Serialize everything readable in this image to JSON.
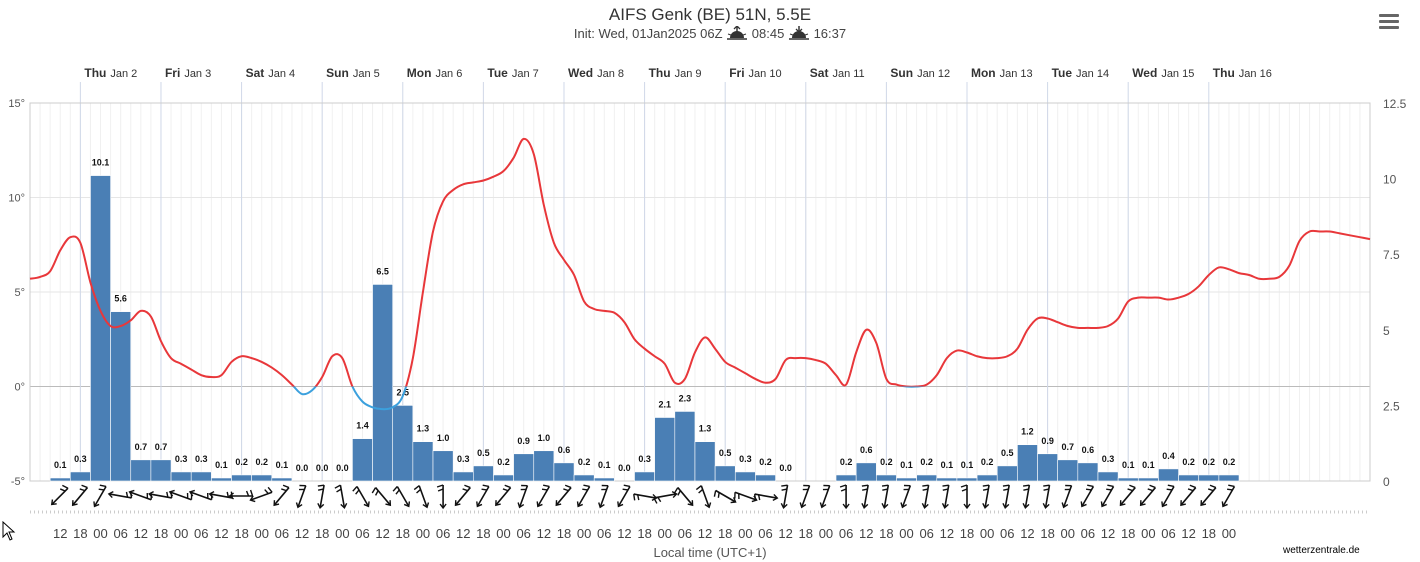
{
  "title": "AIFS Genk (BE) 51N, 5.5E",
  "subtitle": {
    "init": "Init: Wed, 01Jan2025 06Z",
    "sunrise_icon": "sunrise-icon",
    "sunrise": "08:45",
    "sunset_icon": "sunset-icon",
    "sunset": "16:37"
  },
  "menu_icon": "hamburger-menu-icon",
  "x_axis_title": "Local time (UTC+1)",
  "credits": "wetterzentrale.de",
  "colors": {
    "temp_above": "#e8373a",
    "temp_below": "#3ba0dd",
    "precip": "#4a7fb5",
    "grid": "#e6e6e6"
  },
  "chart_data": {
    "type": "bar+line",
    "days": [
      {
        "name": "Thu",
        "date": "Jan 2"
      },
      {
        "name": "Fri",
        "date": "Jan 3"
      },
      {
        "name": "Sat",
        "date": "Jan 4"
      },
      {
        "name": "Sun",
        "date": "Jan 5"
      },
      {
        "name": "Mon",
        "date": "Jan 6"
      },
      {
        "name": "Tue",
        "date": "Jan 7"
      },
      {
        "name": "Wed",
        "date": "Jan 8"
      },
      {
        "name": "Thu",
        "date": "Jan 9"
      },
      {
        "name": "Fri",
        "date": "Jan 10"
      },
      {
        "name": "Sat",
        "date": "Jan 11"
      },
      {
        "name": "Sun",
        "date": "Jan 12"
      },
      {
        "name": "Mon",
        "date": "Jan 13"
      },
      {
        "name": "Tue",
        "date": "Jan 14"
      },
      {
        "name": "Wed",
        "date": "Jan 15"
      },
      {
        "name": "Thu",
        "date": "Jan 16"
      }
    ],
    "hour_ticks": [
      "12",
      "18",
      "00",
      "06",
      "12",
      "18",
      "00",
      "06",
      "12",
      "18",
      "00",
      "06",
      "12",
      "18",
      "00",
      "06",
      "12",
      "18",
      "00",
      "06",
      "12",
      "18",
      "00",
      "06",
      "12",
      "18",
      "00",
      "06",
      "12",
      "18",
      "00",
      "06",
      "12",
      "18",
      "00",
      "06",
      "12",
      "18",
      "00",
      "06",
      "12",
      "18",
      "00",
      "06",
      "12",
      "18",
      "00",
      "06",
      "12",
      "18",
      "00",
      "06",
      "12",
      "18",
      "00",
      "06",
      "12",
      "18",
      "00"
    ],
    "y_left": {
      "ticks": [
        "15°",
        "10°",
        "5°",
        "0°",
        "-5°"
      ],
      "range": [
        -5,
        15
      ]
    },
    "y_right": {
      "ticks": [
        "12.5",
        "10",
        "7.5",
        "5",
        "2.5",
        "0"
      ],
      "range": [
        0,
        12.5
      ]
    },
    "precip_series": {
      "name": "Precipitation (mm/6h)",
      "start_hours": 9,
      "step_hours": 6,
      "values": [
        0.1,
        0.3,
        10.1,
        5.6,
        0.7,
        0.7,
        0.3,
        0.3,
        0.1,
        0.2,
        0.2,
        0.1,
        0.0,
        0.0,
        0.0,
        1.4,
        6.5,
        2.5,
        1.3,
        1.0,
        0.3,
        0.5,
        0.2,
        0.9,
        1.0,
        0.6,
        0.2,
        0.1,
        0.0,
        0.3,
        2.1,
        2.3,
        1.3,
        0.5,
        0.3,
        0.2,
        0.0,
        null,
        null,
        0.2,
        0.6,
        0.2,
        0.1,
        0.2,
        0.1,
        0.1,
        0.2,
        0.5,
        1.2,
        0.9,
        0.7,
        0.6,
        0.3,
        0.1,
        0.1,
        0.4,
        0.2,
        0.2,
        0.2
      ]
    },
    "temp_series": {
      "name": "Temperature (°C)",
      "points": [
        [
          0,
          5.7
        ],
        [
          3,
          5.8
        ],
        [
          6,
          6.1
        ],
        [
          9,
          7.2
        ],
        [
          12,
          7.9
        ],
        [
          15,
          7.6
        ],
        [
          18,
          5.5
        ],
        [
          21,
          4
        ],
        [
          24,
          3.2
        ],
        [
          27,
          3.2
        ],
        [
          30,
          3.5
        ],
        [
          33,
          4
        ],
        [
          36,
          3.7
        ],
        [
          39,
          2.4
        ],
        [
          42,
          1.5
        ],
        [
          45,
          1.2
        ],
        [
          48,
          0.9
        ],
        [
          51,
          0.6
        ],
        [
          54,
          0.5
        ],
        [
          57,
          0.6
        ],
        [
          60,
          1.3
        ],
        [
          63,
          1.6
        ],
        [
          66,
          1.5
        ],
        [
          69,
          1.3
        ],
        [
          72,
          1.0
        ],
        [
          75,
          0.6
        ],
        [
          78,
          0.1
        ],
        [
          81,
          -0.4
        ],
        [
          84,
          -0.2
        ],
        [
          87,
          0.5
        ],
        [
          90,
          1.6
        ],
        [
          93,
          1.5
        ],
        [
          96,
          0
        ],
        [
          99,
          -0.8
        ],
        [
          102,
          -1.1
        ],
        [
          105,
          -1.2
        ],
        [
          108,
          -1.1
        ],
        [
          111,
          -0.5
        ],
        [
          114,
          1.5
        ],
        [
          117,
          5
        ],
        [
          120,
          8.2
        ],
        [
          123,
          9.8
        ],
        [
          126,
          10.4
        ],
        [
          129,
          10.7
        ],
        [
          132,
          10.8
        ],
        [
          135,
          10.9
        ],
        [
          138,
          11.1
        ],
        [
          141,
          11.4
        ],
        [
          144,
          12.1
        ],
        [
          147,
          13.1
        ],
        [
          150,
          12.3
        ],
        [
          153,
          9.6
        ],
        [
          156,
          7.6
        ],
        [
          159,
          6.7
        ],
        [
          162,
          5.9
        ],
        [
          165,
          4.5
        ],
        [
          168,
          4.1
        ],
        [
          171,
          4.0
        ],
        [
          174,
          3.9
        ],
        [
          177,
          3.4
        ],
        [
          180,
          2.5
        ],
        [
          183,
          2.0
        ],
        [
          186,
          1.6
        ],
        [
          189,
          1.2
        ],
        [
          192,
          0.2
        ],
        [
          195,
          0.4
        ],
        [
          198,
          1.8
        ],
        [
          201,
          2.6
        ],
        [
          204,
          2.0
        ],
        [
          207,
          1.3
        ],
        [
          210,
          1.0
        ],
        [
          213,
          0.7
        ],
        [
          216,
          0.4
        ],
        [
          219,
          0.2
        ],
        [
          222,
          0.4
        ],
        [
          225,
          1.4
        ],
        [
          228,
          1.5
        ],
        [
          231,
          1.5
        ],
        [
          234,
          1.4
        ],
        [
          237,
          1.2
        ],
        [
          240,
          0.6
        ],
        [
          243,
          0.1
        ],
        [
          246,
          1.8
        ],
        [
          249,
          3.0
        ],
        [
          252,
          2.3
        ],
        [
          255,
          0.4
        ],
        [
          258,
          0.1
        ],
        [
          261,
          0.0
        ],
        [
          264,
          0.0
        ],
        [
          267,
          0.1
        ],
        [
          270,
          0.6
        ],
        [
          273,
          1.5
        ],
        [
          276,
          1.9
        ],
        [
          279,
          1.8
        ],
        [
          282,
          1.6
        ],
        [
          285,
          1.5
        ],
        [
          288,
          1.5
        ],
        [
          291,
          1.6
        ],
        [
          294,
          2.0
        ],
        [
          297,
          3.0
        ],
        [
          300,
          3.6
        ],
        [
          303,
          3.6
        ],
        [
          306,
          3.4
        ],
        [
          309,
          3.2
        ],
        [
          312,
          3.1
        ],
        [
          315,
          3.1
        ],
        [
          318,
          3.1
        ],
        [
          321,
          3.2
        ],
        [
          324,
          3.6
        ],
        [
          327,
          4.5
        ],
        [
          330,
          4.7
        ],
        [
          333,
          4.7
        ],
        [
          336,
          4.7
        ],
        [
          339,
          4.6
        ],
        [
          342,
          4.7
        ],
        [
          345,
          4.9
        ],
        [
          348,
          5.3
        ],
        [
          351,
          5.9
        ],
        [
          354,
          6.3
        ],
        [
          357,
          6.2
        ],
        [
          360,
          6.0
        ],
        [
          363,
          5.9
        ],
        [
          366,
          5.7
        ],
        [
          369,
          5.7
        ],
        [
          372,
          5.8
        ],
        [
          375,
          6.4
        ],
        [
          378,
          7.7
        ],
        [
          381,
          8.2
        ],
        [
          384,
          8.2
        ],
        [
          387,
          8.2
        ],
        [
          390,
          8.1
        ],
        [
          393,
          8.0
        ],
        [
          396,
          7.9
        ],
        [
          399,
          7.8
        ]
      ]
    },
    "wind_directions_deg": [
      225,
      220,
      210,
      280,
      290,
      280,
      290,
      290,
      280,
      270,
      250,
      220,
      200,
      190,
      170,
      150,
      140,
      150,
      160,
      180,
      220,
      210,
      220,
      200,
      210,
      220,
      210,
      200,
      210,
      100,
      80,
      140,
      160,
      120,
      110,
      100,
      190,
      200,
      200,
      180,
      190,
      190,
      200,
      190,
      190,
      180,
      190,
      190,
      190,
      190,
      200,
      210,
      210,
      220,
      220,
      210,
      220,
      220,
      210
    ]
  }
}
